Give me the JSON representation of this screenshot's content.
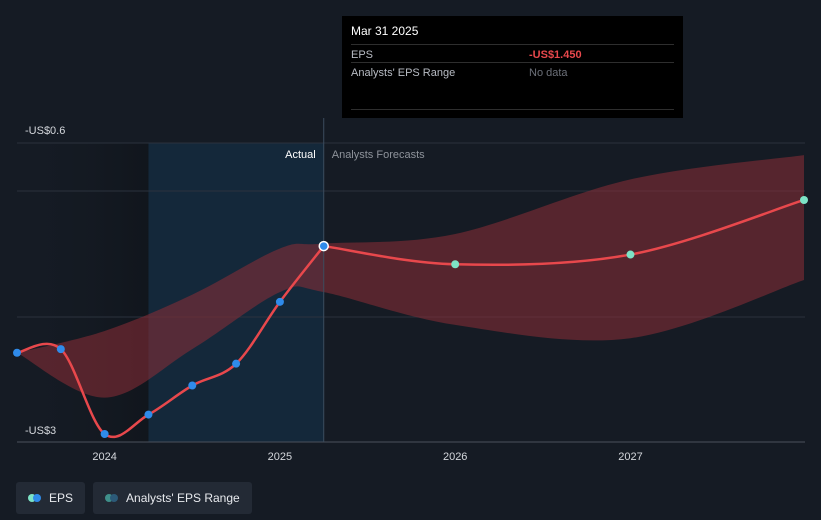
{
  "chart_data": {
    "type": "line",
    "y_axis": {
      "top_label": "-US$0.6",
      "bottom_label": "-US$3",
      "ylim": [
        -3.0,
        -0.6
      ]
    },
    "x_axis": {
      "tick_labels": [
        "2024",
        "2025",
        "2026",
        "2027"
      ],
      "xlim": [
        2023.5,
        2027.99
      ]
    },
    "sections": {
      "actual_label": "Actual",
      "forecast_label": "Analysts Forecasts",
      "split_x": 2025.25
    },
    "series": [
      {
        "name": "EPS",
        "kind": "actual",
        "x": [
          2023.5,
          2023.75,
          2024.0,
          2024.25,
          2024.5,
          2024.75,
          2025.0,
          2025.25
        ],
        "y": [
          -2.33,
          -2.3,
          -3.0,
          -2.84,
          -2.6,
          -2.42,
          -1.91,
          -1.45
        ]
      },
      {
        "name": "EPS",
        "kind": "forecast",
        "x": [
          2025.25,
          2026.0,
          2027.0,
          2027.99
        ],
        "y": [
          -1.45,
          -1.6,
          -1.52,
          -1.07
        ]
      }
    ],
    "range": {
      "name": "Analysts' EPS Range",
      "x": [
        2023.5,
        2024.0,
        2024.5,
        2025.0,
        2025.25,
        2026.0,
        2027.0,
        2027.99
      ],
      "low": [
        -2.33,
        -2.7,
        -2.3,
        -1.83,
        -1.83,
        -2.1,
        -2.21,
        -1.73
      ],
      "high": [
        -2.33,
        -2.15,
        -1.85,
        -1.47,
        -1.43,
        -1.35,
        -0.9,
        -0.7
      ]
    },
    "highlight_x": 2025.25
  },
  "tooltip": {
    "date": "Mar 31 2025",
    "rows": [
      {
        "label": "EPS",
        "value": "-US$1.450"
      },
      {
        "label": "Analysts' EPS Range",
        "value": "No data"
      }
    ]
  },
  "legend": {
    "eps_label": "EPS",
    "range_label": "Analysts' EPS Range"
  },
  "colors": {
    "background": "#151b24",
    "actual_band": "#14283a",
    "line": "#e8484c",
    "range_fill": "#8c2e37",
    "actual_dot": "#2f8bea",
    "forecast_dot": "#7de3c6"
  }
}
